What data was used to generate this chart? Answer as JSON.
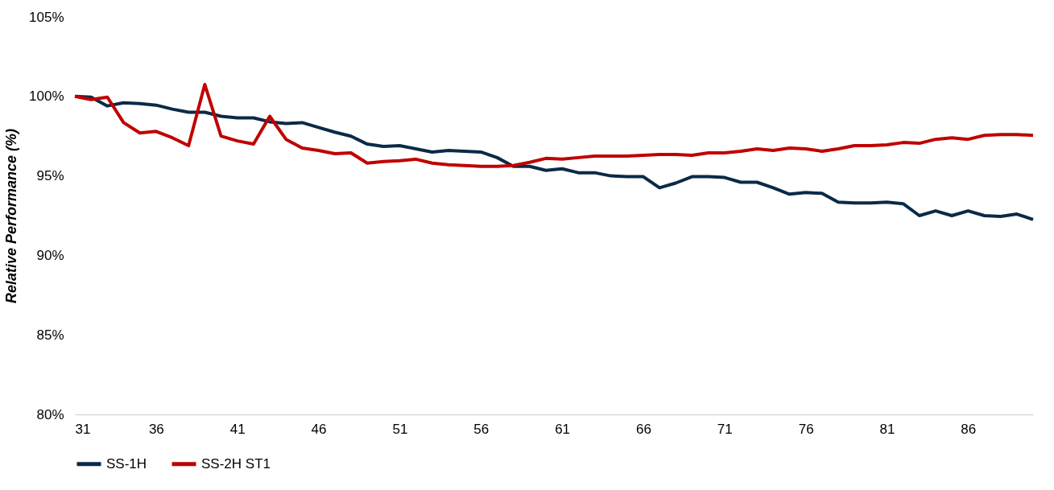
{
  "chart_data": {
    "type": "line",
    "ylabel": "Relative Performance (%)",
    "x": [
      31,
      32,
      33,
      34,
      35,
      36,
      37,
      38,
      39,
      40,
      41,
      42,
      43,
      44,
      45,
      46,
      47,
      48,
      49,
      50,
      51,
      52,
      53,
      54,
      55,
      56,
      57,
      58,
      59,
      60,
      61,
      62,
      63,
      64,
      65,
      66,
      67,
      68,
      69,
      70,
      71,
      72,
      73,
      74,
      75,
      76,
      77,
      78,
      79,
      80,
      81,
      82,
      83,
      84,
      85,
      86,
      87,
      88,
      89,
      90
    ],
    "series": [
      {
        "name": "SS-1H",
        "color": "#0b2a47",
        "values": [
          100,
          99.95,
          99.4,
          99.6,
          99.55,
          99.45,
          99.2,
          99.0,
          99.0,
          98.75,
          98.65,
          98.65,
          98.4,
          98.3,
          98.35,
          98.05,
          97.75,
          97.5,
          97.0,
          96.85,
          96.9,
          96.7,
          96.5,
          96.6,
          96.55,
          96.5,
          96.15,
          95.6,
          95.6,
          95.35,
          95.45,
          95.2,
          95.2,
          95.0,
          94.95,
          94.95,
          94.25,
          94.55,
          94.95,
          94.95,
          94.9,
          94.6,
          94.6,
          94.25,
          93.85,
          93.95,
          93.9,
          93.35,
          93.3,
          93.3,
          93.35,
          93.25,
          92.5,
          92.8,
          92.5,
          92.8,
          92.5,
          92.45,
          92.6,
          92.25
        ]
      },
      {
        "name": "SS-2H ST1",
        "color": "#c00000",
        "values": [
          100,
          99.8,
          99.95,
          98.35,
          97.7,
          97.8,
          97.4,
          96.9,
          100.75,
          97.5,
          97.2,
          97.0,
          98.75,
          97.3,
          96.75,
          96.6,
          96.4,
          96.45,
          95.8,
          95.9,
          95.95,
          96.05,
          95.8,
          95.7,
          95.65,
          95.6,
          95.6,
          95.65,
          95.85,
          96.1,
          96.05,
          96.15,
          96.25,
          96.25,
          96.25,
          96.3,
          96.35,
          96.35,
          96.3,
          96.45,
          96.45,
          96.55,
          96.7,
          96.6,
          96.75,
          96.7,
          96.55,
          96.7,
          96.9,
          96.9,
          96.95,
          97.1,
          97.05,
          97.3,
          97.4,
          97.3,
          97.55,
          97.6,
          97.6,
          97.55
        ]
      }
    ],
    "xlim": [
      31,
      90
    ],
    "xticks": [
      31,
      36,
      41,
      46,
      51,
      56,
      61,
      66,
      71,
      76,
      81,
      86
    ],
    "ylim": [
      80,
      105
    ],
    "yticks": [
      {
        "value": 80,
        "label": "80%"
      },
      {
        "value": 85,
        "label": "85%"
      },
      {
        "value": 90,
        "label": "90%"
      },
      {
        "value": 95,
        "label": "95%"
      },
      {
        "value": 100,
        "label": "100%"
      },
      {
        "value": 105,
        "label": "105%"
      }
    ],
    "grid": false,
    "legend": "bottom",
    "marker": "none",
    "line_style": "solid"
  }
}
